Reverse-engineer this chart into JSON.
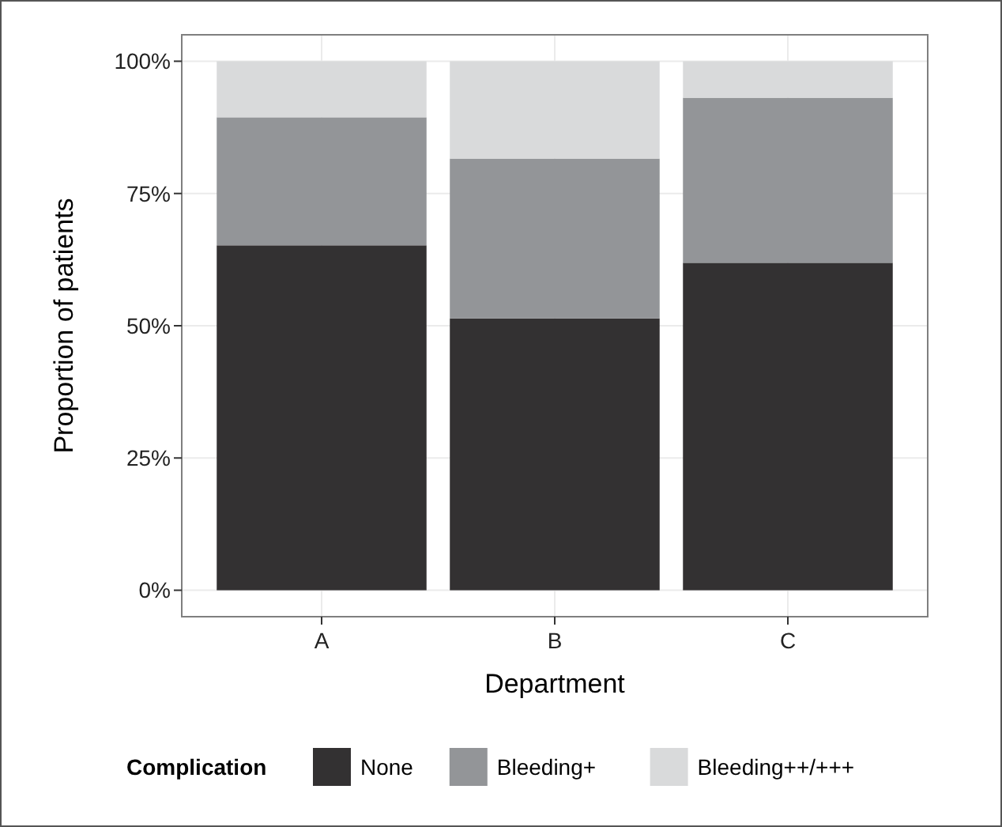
{
  "chart_data": {
    "type": "bar",
    "stacked": true,
    "xlabel": "Department",
    "ylabel": "Proportion of patients",
    "legend_title": "Complication",
    "legend": "bottom",
    "grid": true,
    "categories": [
      "A",
      "B",
      "C"
    ],
    "series": [
      {
        "name": "None",
        "color": "#333132",
        "values": [
          65.2,
          51.4,
          61.9
        ]
      },
      {
        "name": "Bleeding+",
        "color": "#939598",
        "values": [
          24.2,
          30.2,
          31.2
        ]
      },
      {
        "name": "Bleeding++/+++",
        "color": "#d9dadb",
        "values": [
          10.6,
          18.4,
          6.9
        ]
      }
    ],
    "ylim": [
      -5,
      105
    ],
    "yticks": [
      {
        "value": 0,
        "label": "0%"
      },
      {
        "value": 25,
        "label": "25%"
      },
      {
        "value": 50,
        "label": "50%"
      },
      {
        "value": 75,
        "label": "75%"
      },
      {
        "value": 100,
        "label": "100%"
      }
    ]
  }
}
